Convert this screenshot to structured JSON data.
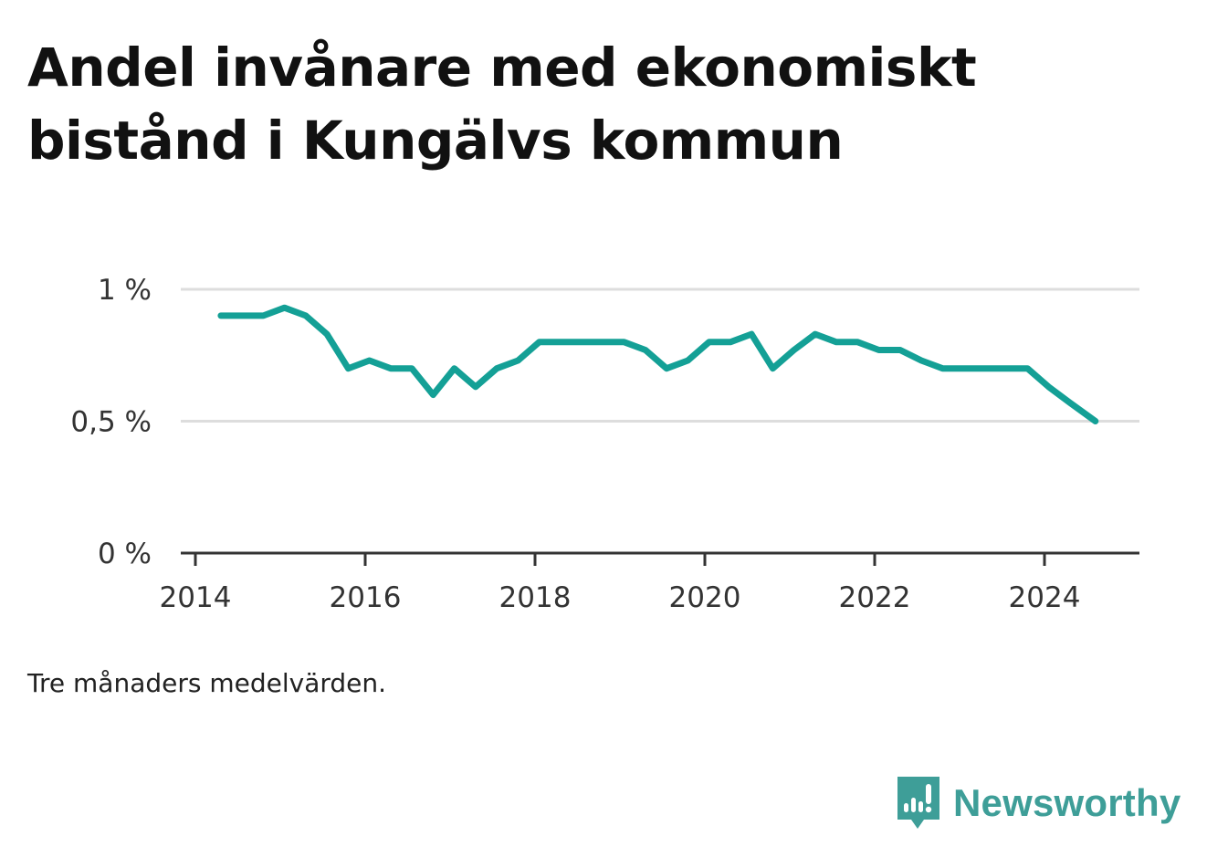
{
  "title": "Andel invånare med ekonomiskt bistånd i Kungälvs kommun",
  "note": "Tre månaders medelvärden.",
  "brand": {
    "name": "Newsworthy",
    "icon": "newsworthy-logo-icon",
    "color": "#3e9e98"
  },
  "chart_data": {
    "type": "line",
    "title": "Andel invånare med ekonomiskt bistånd i Kungälvs kommun",
    "xlabel": "",
    "ylabel": "",
    "xlim": [
      2014.0,
      2025.0
    ],
    "ylim": [
      0,
      1.0
    ],
    "x_ticks": [
      {
        "value": 2014,
        "label": "2014"
      },
      {
        "value": 2016,
        "label": "2016"
      },
      {
        "value": 2018,
        "label": "2018"
      },
      {
        "value": 2020,
        "label": "2020"
      },
      {
        "value": 2022,
        "label": "2022"
      },
      {
        "value": 2024,
        "label": "2024"
      }
    ],
    "y_ticks": [
      {
        "value": 0,
        "label": "0 %"
      },
      {
        "value": 0.5,
        "label": "0,5 %"
      },
      {
        "value": 1.0,
        "label": "1 %"
      }
    ],
    "grid": true,
    "line_color": "#14a096",
    "series": [
      {
        "x": [
          2014.3,
          2014.55,
          2014.8,
          2015.05,
          2015.3,
          2015.55,
          2015.8,
          2016.05,
          2016.3,
          2016.55,
          2016.8,
          2017.05,
          2017.3,
          2017.55,
          2017.8,
          2018.05,
          2018.3,
          2018.55,
          2018.8,
          2019.05,
          2019.3,
          2019.55,
          2019.8,
          2020.05,
          2020.3,
          2020.55,
          2020.8,
          2021.05,
          2021.3,
          2021.55,
          2021.8,
          2022.05,
          2022.3,
          2022.55,
          2022.8,
          2023.05,
          2023.3,
          2023.55,
          2023.8,
          2024.05,
          2024.3,
          2024.6
        ],
        "values": [
          0.9,
          0.9,
          0.9,
          0.93,
          0.9,
          0.83,
          0.7,
          0.73,
          0.7,
          0.7,
          0.6,
          0.7,
          0.63,
          0.7,
          0.73,
          0.8,
          0.8,
          0.8,
          0.8,
          0.8,
          0.77,
          0.7,
          0.73,
          0.8,
          0.8,
          0.83,
          0.7,
          0.77,
          0.83,
          0.8,
          0.8,
          0.77,
          0.77,
          0.73,
          0.7,
          0.7,
          0.7,
          0.7,
          0.7,
          0.63,
          0.57,
          0.5
        ]
      }
    ]
  }
}
